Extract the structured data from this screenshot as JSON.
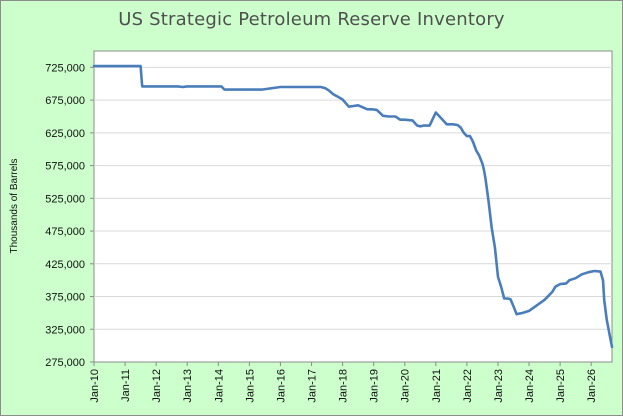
{
  "chart_data": {
    "type": "line",
    "title": "US Strategic Petroleum Reserve Inventory",
    "xlabel": "",
    "ylabel": "Thousands of Barrels",
    "xlim": [
      2010.0,
      2026.67
    ],
    "ylim": [
      275000,
      750000
    ],
    "y_ticks": [
      275000,
      325000,
      375000,
      425000,
      475000,
      525000,
      575000,
      625000,
      675000,
      725000
    ],
    "y_tick_labels": [
      "275,000",
      "325,000",
      "375,000",
      "425,000",
      "475,000",
      "525,000",
      "575,000",
      "625,000",
      "675,000",
      "725,000"
    ],
    "x_ticks": [
      2010,
      2011,
      2012,
      2013,
      2014,
      2015,
      2016,
      2017,
      2018,
      2019,
      2020,
      2021,
      2022,
      2023,
      2024,
      2025,
      2026
    ],
    "x_tick_labels": [
      "Jan-10",
      "Jan-11",
      "Jan-12",
      "Jan-13",
      "Jan-14",
      "Jan-15",
      "Jan-16",
      "Jan-17",
      "Jan-18",
      "Jan-19",
      "Jan-20",
      "Jan-21",
      "Jan-22",
      "Jan-23",
      "Jan-24",
      "Jan-25",
      "Jan-26"
    ],
    "grid": {
      "horizontal": true,
      "vertical": false
    },
    "legend": "none",
    "series": [
      {
        "color": "#4a7ebb",
        "x": [
          2010.0,
          2010.5,
          2011.0,
          2011.4,
          2011.5,
          2011.55,
          2012.0,
          2012.5,
          2012.7,
          2012.85,
          2013.0,
          2013.5,
          2013.9,
          2014.1,
          2014.2,
          2014.5,
          2015.0,
          2015.2,
          2015.4,
          2016.0,
          2016.5,
          2017.0,
          2017.15,
          2017.3,
          2017.45,
          2017.55,
          2017.7,
          2017.85,
          2018.0,
          2018.2,
          2018.35,
          2018.5,
          2018.8,
          2018.95,
          2019.1,
          2019.3,
          2019.5,
          2019.7,
          2019.85,
          2020.0,
          2020.25,
          2020.4,
          2020.5,
          2020.6,
          2020.7,
          2020.8,
          2021.0,
          2021.2,
          2021.35,
          2021.45,
          2021.55,
          2021.7,
          2021.8,
          2021.9,
          2022.0,
          2022.1,
          2022.2,
          2022.3,
          2022.4,
          2022.5,
          2022.55,
          2022.6,
          2022.7,
          2022.8,
          2022.9,
          2023.0,
          2023.1,
          2023.2,
          2023.3,
          2023.4,
          2023.5,
          2023.6,
          2023.8,
          2024.0,
          2024.5,
          2024.75,
          2024.85,
          2025.0,
          2025.2,
          2025.3,
          2025.5,
          2025.7,
          2025.9,
          2026.1,
          2026.3,
          2026.38,
          2026.42,
          2026.5,
          2026.6,
          2026.67
        ],
        "y": [
          727000,
          727000,
          727000,
          727000,
          727000,
          696000,
          696000,
          696000,
          696000,
          695000,
          696000,
          696000,
          696000,
          696000,
          691000,
          691000,
          691000,
          691000,
          691000,
          695000,
          695000,
          695000,
          695000,
          695000,
          693000,
          690000,
          684000,
          680000,
          676000,
          665000,
          666000,
          667000,
          661000,
          661000,
          660000,
          651000,
          650000,
          650000,
          645000,
          645000,
          644000,
          636000,
          635000,
          636000,
          636000,
          636000,
          656000,
          646000,
          638000,
          638000,
          638000,
          637000,
          633000,
          625000,
          620000,
          620000,
          611000,
          598000,
          590000,
          578000,
          568000,
          555000,
          520000,
          480000,
          450000,
          405000,
          390000,
          372000,
          372000,
          371000,
          360000,
          348000,
          350000,
          353000,
          370000,
          382000,
          390000,
          394000,
          395000,
          400000,
          403000,
          409000,
          412000,
          414000,
          413000,
          400000,
          370000,
          340000,
          315000,
          298000
        ]
      }
    ]
  }
}
